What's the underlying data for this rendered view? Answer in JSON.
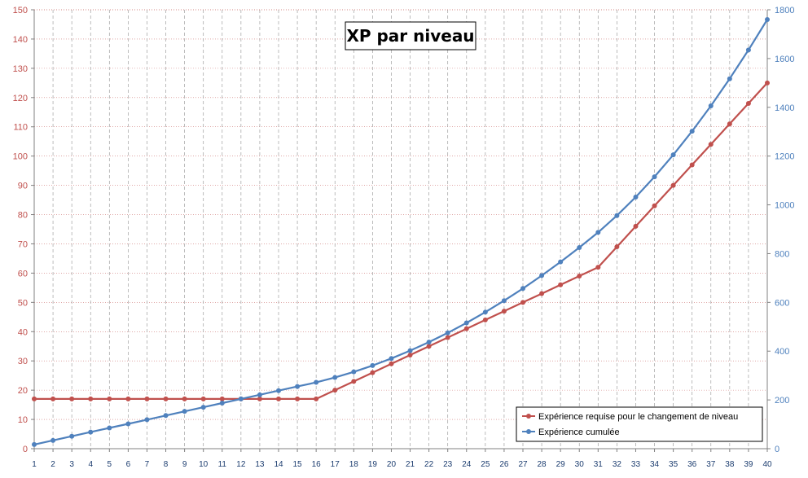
{
  "chart_data": {
    "type": "line",
    "title": "XP par niveau",
    "categories": [
      1,
      2,
      3,
      4,
      5,
      6,
      7,
      8,
      9,
      10,
      11,
      12,
      13,
      14,
      15,
      16,
      17,
      18,
      19,
      20,
      21,
      22,
      23,
      24,
      25,
      26,
      27,
      28,
      29,
      30,
      31,
      32,
      33,
      34,
      35,
      36,
      37,
      38,
      39,
      40
    ],
    "y_left": {
      "min": 0,
      "max": 150,
      "step": 10
    },
    "y_right": {
      "min": 0,
      "max": 1800,
      "step": 200
    },
    "grid": true,
    "legend_position": "bottom-right",
    "series": [
      {
        "name": "Expérience requise pour le changement de niveau",
        "axis": "left",
        "color": "#c0504d",
        "values": [
          17,
          17,
          17,
          17,
          17,
          17,
          17,
          17,
          17,
          17,
          17,
          17,
          17,
          17,
          17,
          17,
          20,
          23,
          26,
          29,
          32,
          35,
          38,
          41,
          44,
          47,
          50,
          53,
          56,
          59,
          62,
          69,
          76,
          83,
          90,
          97,
          104,
          111,
          118,
          125
        ]
      },
      {
        "name": "Expérience cumulée",
        "axis": "right",
        "color": "#4f81bd",
        "values": [
          17,
          34,
          51,
          68,
          85,
          102,
          119,
          136,
          153,
          170,
          187,
          204,
          221,
          238,
          255,
          272,
          292,
          315,
          341,
          370,
          402,
          437,
          475,
          516,
          560,
          607,
          657,
          710,
          766,
          825,
          887,
          956,
          1032,
          1115,
          1205,
          1302,
          1406,
          1517,
          1635,
          1760
        ]
      }
    ]
  }
}
